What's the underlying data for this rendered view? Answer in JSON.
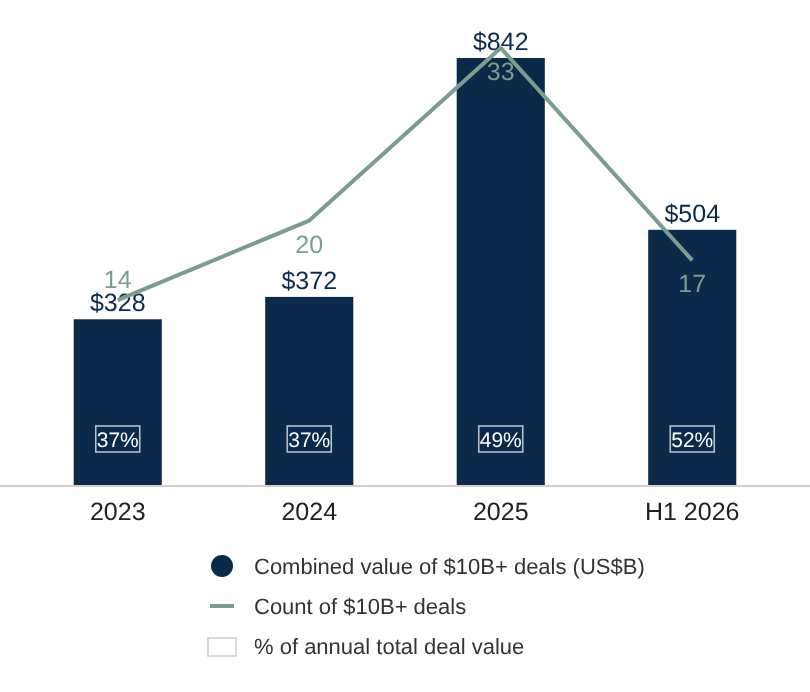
{
  "chart_data": {
    "type": "bar",
    "categories": [
      "2023",
      "2024",
      "2025",
      "H1 2026"
    ],
    "legend": "bottom",
    "annotations": [
      {
        "text": "37%",
        "x": "2023"
      },
      {
        "text": "37%",
        "x": "2024"
      },
      {
        "text": "49%",
        "x": "2025"
      },
      {
        "text": "52%",
        "x": "H1 2026"
      }
    ],
    "series": [
      {
        "name": "Combined value of $10B+ deals (US$B)",
        "color": "#0b2a4a",
        "values": [
          328,
          372,
          842,
          504
        ],
        "value_labels": [
          "$328",
          "$372",
          "$842",
          "$504"
        ]
      },
      {
        "name": "Count of $10B+ deals",
        "type": "line",
        "axis": "y2",
        "color": "#7a9e8e",
        "values": [
          14,
          20,
          33,
          17
        ],
        "value_labels": [
          "14",
          "20",
          "33",
          "17"
        ]
      },
      {
        "name": "% of annual total deal value",
        "type": "other",
        "color": "#ffffff",
        "values": [
          null,
          null,
          null,
          null
        ]
      }
    ]
  }
}
